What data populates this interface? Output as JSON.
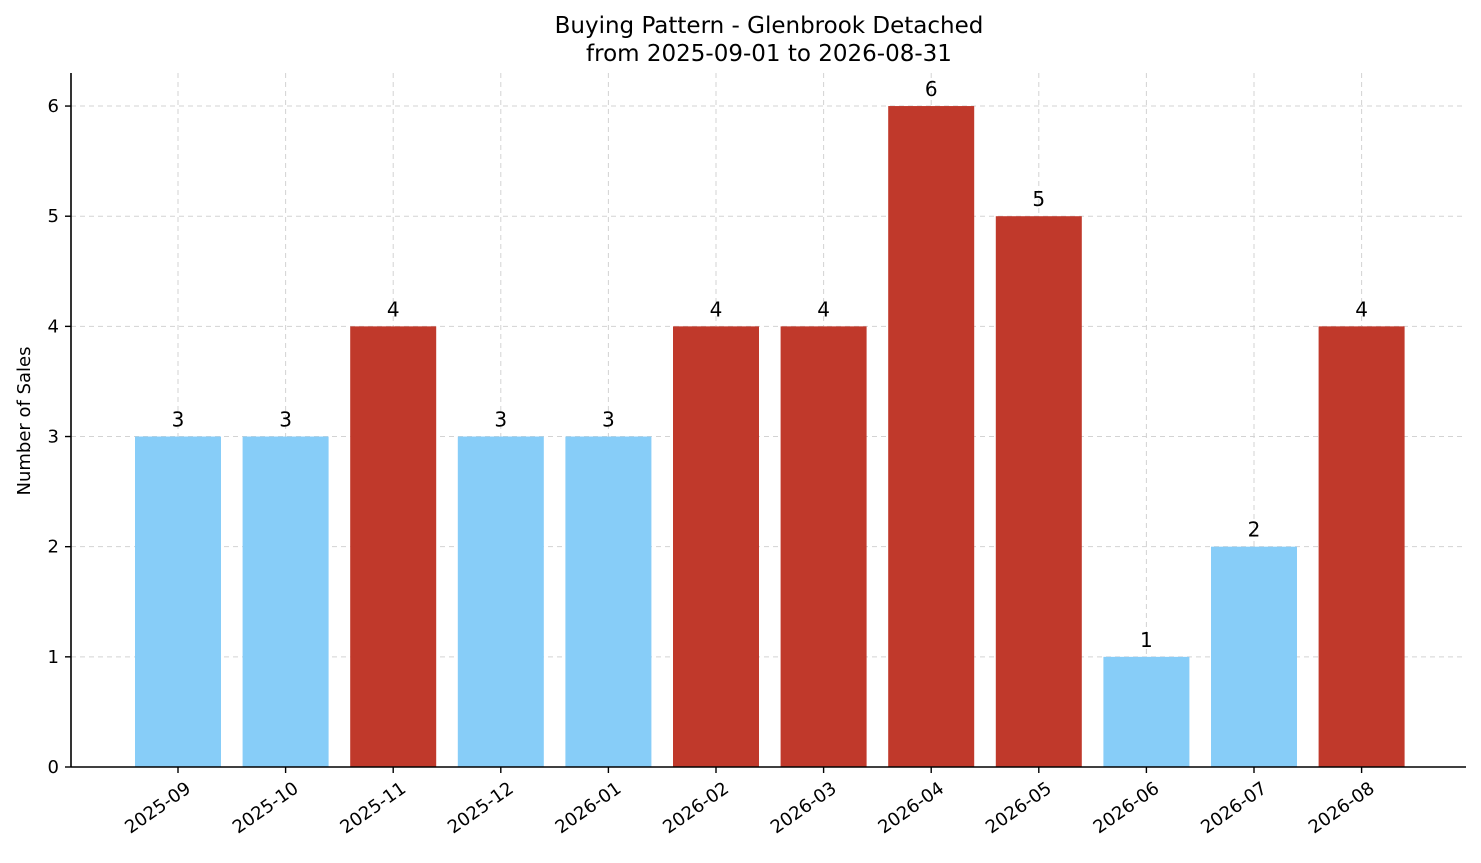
{
  "chart_data": {
    "type": "bar",
    "title": "Buying Pattern - Glenbrook Detached",
    "subtitle": "from 2025-09-01 to 2026-08-31",
    "xlabel": "",
    "ylabel": "Number of Sales",
    "categories": [
      "2025-09",
      "2025-10",
      "2025-11",
      "2025-12",
      "2026-01",
      "2026-02",
      "2026-03",
      "2026-04",
      "2026-05",
      "2026-06",
      "2026-07",
      "2026-08"
    ],
    "values": [
      3,
      3,
      4,
      3,
      3,
      4,
      4,
      6,
      5,
      1,
      2,
      4
    ],
    "bar_colors": [
      "#87cdf8",
      "#87cdf8",
      "#c0392b",
      "#87cdf8",
      "#87cdf8",
      "#c0392b",
      "#c0392b",
      "#c0392b",
      "#c0392b",
      "#87cdf8",
      "#87cdf8",
      "#c0392b"
    ],
    "ylim": [
      0,
      6.3
    ],
    "yticks": [
      0,
      1,
      2,
      3,
      4,
      5,
      6
    ],
    "grid": true,
    "legend": "none"
  }
}
